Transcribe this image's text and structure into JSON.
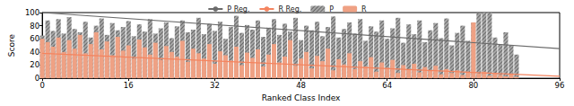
{
  "chart_data": {
    "type": "bar",
    "x_label": "Ranked Class Index",
    "y_label": "Score",
    "x": [
      0,
      1,
      2,
      3,
      4,
      5,
      6,
      7,
      8,
      9,
      10,
      11,
      12,
      13,
      14,
      15,
      16,
      17,
      18,
      19,
      20,
      21,
      22,
      23,
      24,
      25,
      26,
      27,
      28,
      29,
      30,
      31,
      32,
      33,
      34,
      35,
      36,
      37,
      38,
      39,
      40,
      41,
      42,
      43,
      44,
      45,
      46,
      47,
      48,
      49,
      50,
      51,
      52,
      53,
      54,
      55,
      56,
      57,
      58,
      59,
      60,
      61,
      62,
      63,
      64,
      65,
      66,
      67,
      68,
      69,
      70,
      71,
      72,
      73,
      74,
      75,
      76,
      77,
      78,
      79,
      80,
      81,
      82,
      83,
      84,
      85,
      86,
      87,
      88
    ],
    "series": [
      {
        "name": "P Reg.",
        "type": "line",
        "color": "#6b6b6b",
        "x": [
          0,
          96
        ],
        "values": [
          100,
          45
        ]
      },
      {
        "name": "R Reg.",
        "type": "line",
        "color": "#f4845f",
        "x": [
          0,
          96
        ],
        "values": [
          38,
          3
        ]
      },
      {
        "name": "P",
        "type": "bar",
        "color": "#a8a8a8",
        "values": [
          65,
          88,
          72,
          90,
          68,
          93,
          75,
          70,
          86,
          62,
          80,
          91,
          66,
          84,
          73,
          78,
          87,
          64,
          82,
          71,
          90,
          68,
          76,
          85,
          61,
          79,
          88,
          70,
          74,
          92,
          67,
          83,
          72,
          86,
          60,
          78,
          95,
          69,
          81,
          74,
          88,
          63,
          77,
          90,
          66,
          83,
          71,
          92,
          58,
          80,
          73,
          86,
          64,
          78,
          94,
          62,
          75,
          85,
          68,
          90,
          57,
          79,
          71,
          88,
          60,
          76,
          92,
          54,
          82,
          67,
          88,
          55,
          73,
          84,
          61,
          91,
          50,
          69,
          80,
          57,
          85,
          99,
          100,
          100,
          62,
          52,
          70,
          50,
          36
        ]
      },
      {
        "name": "R",
        "type": "bar",
        "color": "#efa184",
        "values": [
          60,
          55,
          48,
          62,
          40,
          58,
          45,
          66,
          38,
          52,
          70,
          44,
          56,
          35,
          63,
          42,
          50,
          30,
          59,
          47,
          36,
          54,
          28,
          49,
          40,
          33,
          57,
          25,
          45,
          38,
          30,
          52,
          22,
          41,
          35,
          27,
          48,
          20,
          39,
          31,
          44,
          18,
          36,
          52,
          24,
          33,
          58,
          19,
          30,
          40,
          15,
          34,
          26,
          45,
          12,
          29,
          21,
          38,
          14,
          26,
          18,
          32,
          10,
          24,
          16,
          28,
          8,
          20,
          13,
          22,
          9,
          17,
          11,
          19,
          6,
          14,
          8,
          12,
          5,
          10,
          85,
          7,
          10,
          4,
          8,
          5,
          3,
          6,
          2
        ]
      }
    ],
    "xlim": [
      0,
      96
    ],
    "xticks": [
      0,
      16,
      32,
      48,
      64,
      80,
      96
    ],
    "ylim": [
      0,
      100
    ],
    "yticks": [
      0,
      20,
      40,
      60,
      80,
      100
    ],
    "grid": false,
    "legend": "top"
  }
}
